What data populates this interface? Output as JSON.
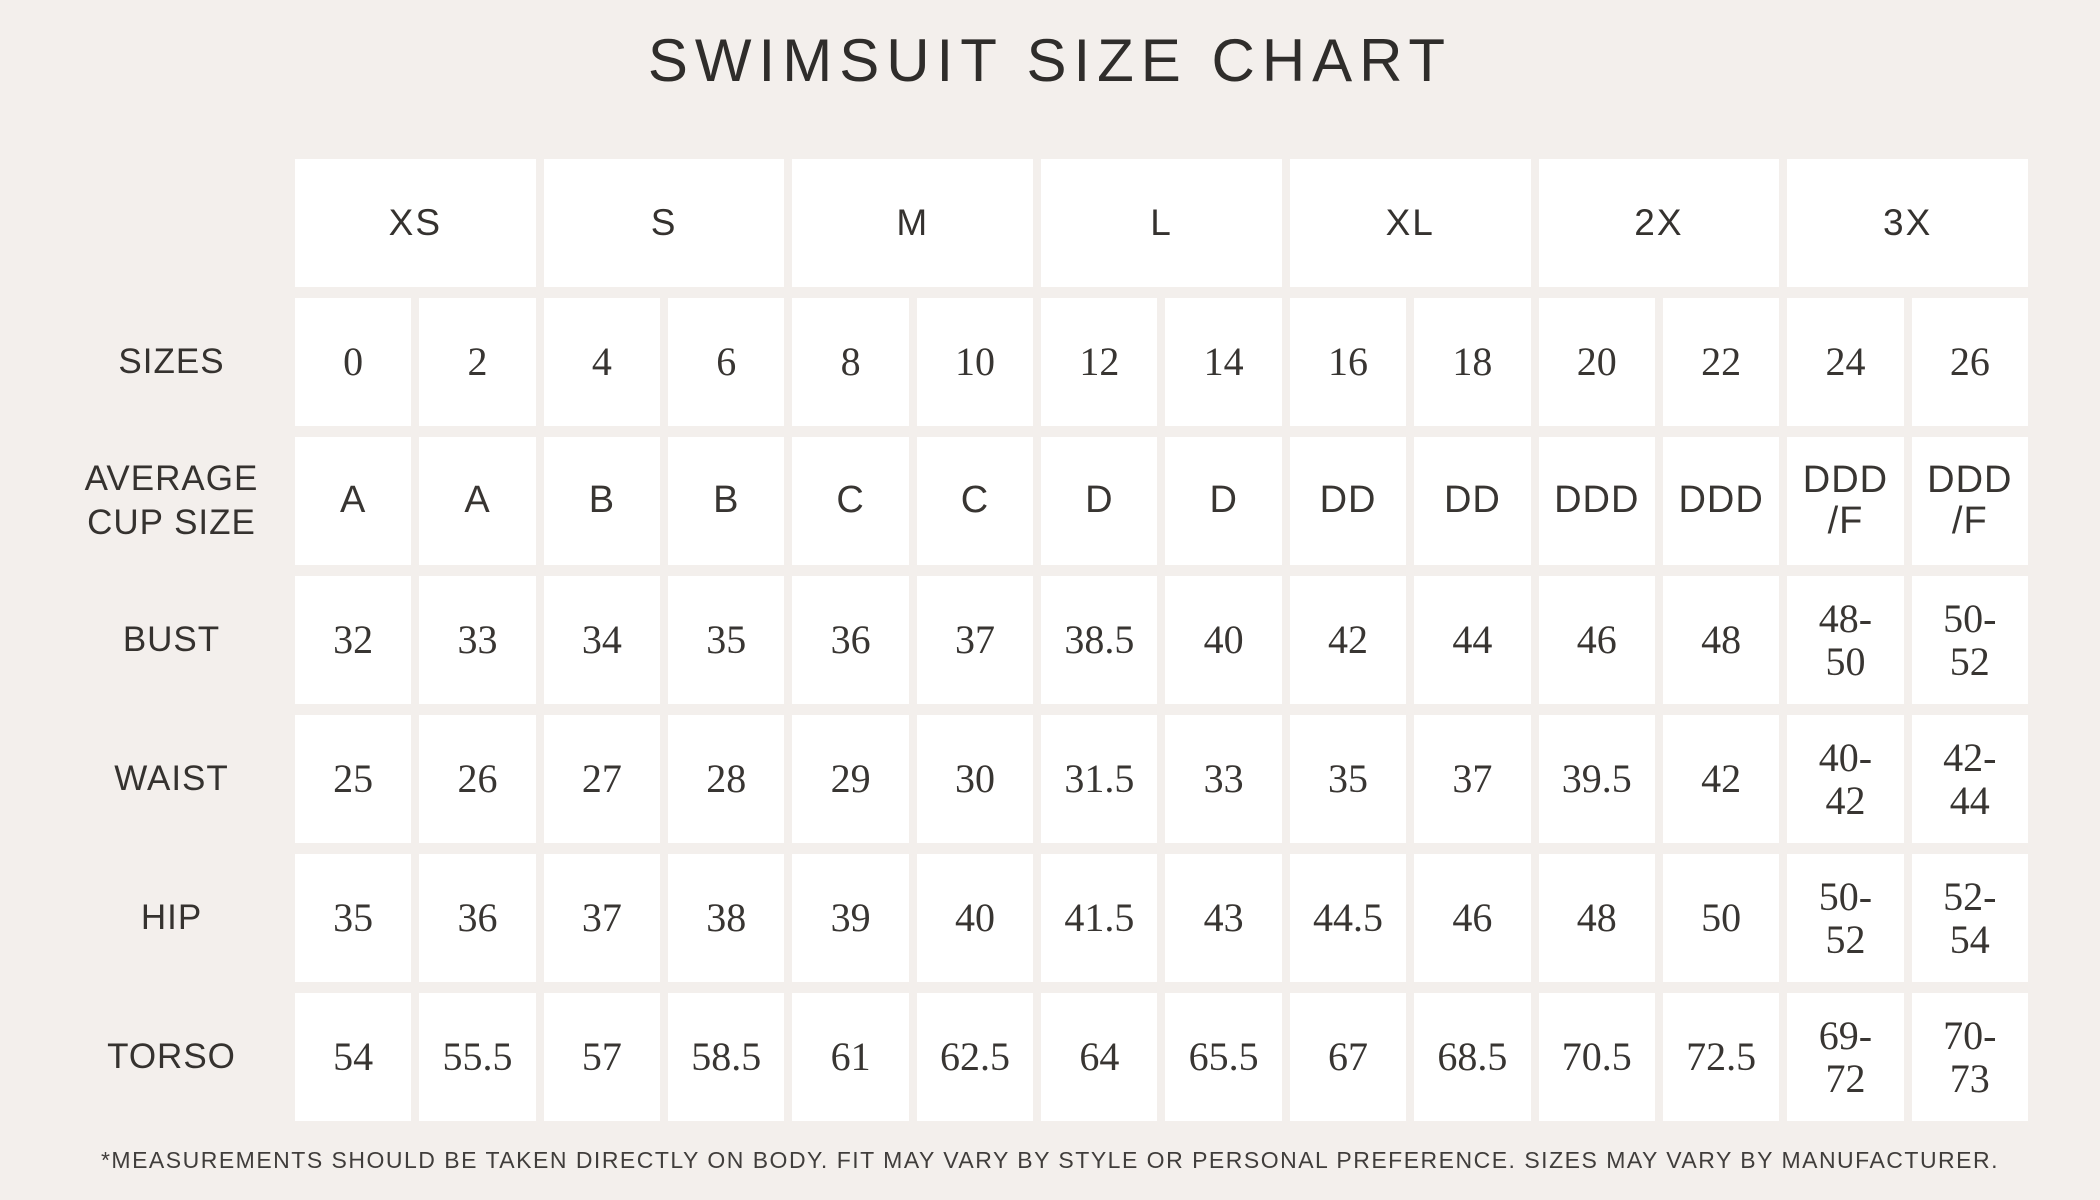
{
  "colors": {
    "background": "#f3efec",
    "cell": "#ffffff",
    "text": "#383532"
  },
  "chart_data": {
    "type": "table",
    "title": "SWIMSUIT SIZE CHART",
    "column_groups": [
      {
        "label": "XS",
        "span": 2
      },
      {
        "label": "S",
        "span": 2
      },
      {
        "label": "M",
        "span": 2
      },
      {
        "label": "L",
        "span": 2
      },
      {
        "label": "XL",
        "span": 2
      },
      {
        "label": "2X",
        "span": 2
      },
      {
        "label": "3X",
        "span": 2
      }
    ],
    "rows": [
      {
        "label": "SIZES",
        "values": [
          "0",
          "2",
          "4",
          "6",
          "8",
          "10",
          "12",
          "14",
          "16",
          "18",
          "20",
          "22",
          "24",
          "26"
        ]
      },
      {
        "label": "AVERAGE\nCUP SIZE",
        "values": [
          "A",
          "A",
          "B",
          "B",
          "C",
          "C",
          "D",
          "D",
          "DD",
          "DD",
          "DDD",
          "DDD",
          "DDD\n/F",
          "DDD\n/F"
        ]
      },
      {
        "label": "BUST",
        "values": [
          "32",
          "33",
          "34",
          "35",
          "36",
          "37",
          "38.5",
          "40",
          "42",
          "44",
          "46",
          "48",
          "48-\n50",
          "50-\n52"
        ]
      },
      {
        "label": "WAIST",
        "values": [
          "25",
          "26",
          "27",
          "28",
          "29",
          "30",
          "31.5",
          "33",
          "35",
          "37",
          "39.5",
          "42",
          "40-\n42",
          "42-\n44"
        ]
      },
      {
        "label": "HIP",
        "values": [
          "35",
          "36",
          "37",
          "38",
          "39",
          "40",
          "41.5",
          "43",
          "44.5",
          "46",
          "48",
          "50",
          "50-\n52",
          "52-\n54"
        ]
      },
      {
        "label": "TORSO",
        "values": [
          "54",
          "55.5",
          "57",
          "58.5",
          "61",
          "62.5",
          "64",
          "65.5",
          "67",
          "68.5",
          "70.5",
          "72.5",
          "69-\n72",
          "70-\n73"
        ]
      }
    ],
    "footnote": "*MEASUREMENTS SHOULD BE TAKEN DIRECTLY ON BODY. FIT MAY VARY BY STYLE OR PERSONAL PREFERENCE. SIZES MAY VARY BY MANUFACTURER."
  }
}
